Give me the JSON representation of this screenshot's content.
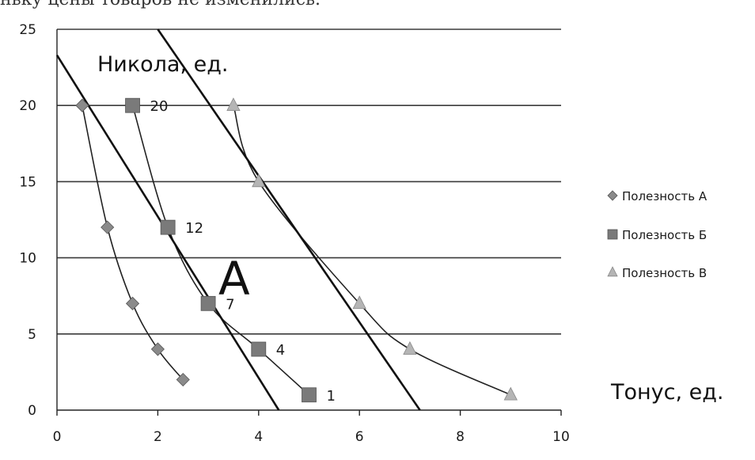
{
  "top_text": "ньку цены товаров не изменились.",
  "chart_data": {
    "type": "scatter",
    "xlim": [
      0,
      10
    ],
    "ylim": [
      0,
      25
    ],
    "x_ticks": [
      0,
      2,
      4,
      6,
      8,
      10
    ],
    "y_ticks": [
      0,
      5,
      10,
      15,
      20,
      25
    ],
    "grid": "horizontal",
    "legend_position": "right",
    "ylabel": "Никола, ед.",
    "xlabel": "Тонус, ед.",
    "annotation": "A",
    "series": [
      {
        "name": "Полезность А",
        "marker": "diamond",
        "color": "#8a8a8a",
        "points": [
          [
            0.5,
            20
          ],
          [
            1,
            12
          ],
          [
            1.5,
            7
          ],
          [
            2,
            4
          ],
          [
            2.5,
            2
          ]
        ]
      },
      {
        "name": "Полезность Б",
        "marker": "square",
        "color": "#7a7a7a",
        "points": [
          [
            1.5,
            20
          ],
          [
            2.2,
            12
          ],
          [
            3,
            7
          ],
          [
            4,
            4
          ],
          [
            5,
            1
          ]
        ],
        "point_labels": [
          "20",
          "12",
          "7",
          "4",
          "1"
        ]
      },
      {
        "name": "Полезность В",
        "marker": "triangle",
        "color": "#b5b5b5",
        "points": [
          [
            3.5,
            20
          ],
          [
            4,
            15
          ],
          [
            6,
            7
          ],
          [
            7,
            4
          ],
          [
            9,
            1
          ]
        ]
      }
    ],
    "budget_lines": [
      {
        "from": [
          0,
          23.3
        ],
        "to": [
          4.4,
          0
        ]
      },
      {
        "from": [
          2,
          25
        ],
        "to": [
          7.2,
          0
        ]
      }
    ]
  }
}
